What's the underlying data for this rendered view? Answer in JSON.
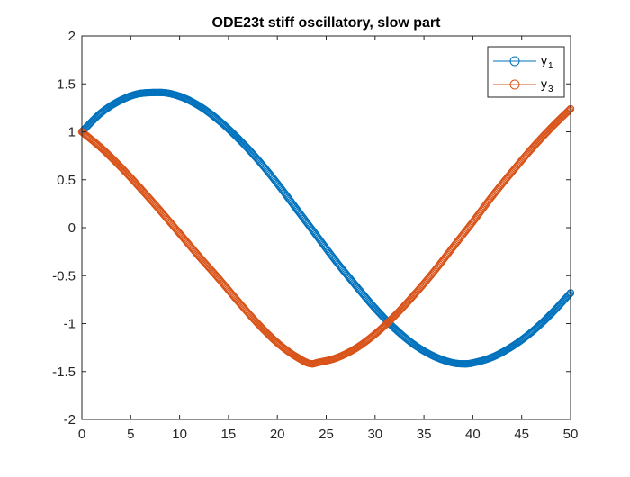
{
  "chart_data": {
    "type": "scatter",
    "title": "ODE23t stiff oscillatory, slow part",
    "xlabel": "",
    "ylabel": "",
    "xlim": [
      0,
      50
    ],
    "ylim": [
      -2,
      2
    ],
    "xticks": [
      0,
      5,
      10,
      15,
      20,
      25,
      30,
      35,
      40,
      45,
      50
    ],
    "yticks": [
      -2,
      -1.5,
      -1,
      -0.5,
      0,
      0.5,
      1,
      1.5,
      2
    ],
    "xtick_labels": [
      "0",
      "5",
      "10",
      "15",
      "20",
      "25",
      "30",
      "35",
      "40",
      "45",
      "50"
    ],
    "ytick_labels": [
      "-2",
      "-1.5",
      "-1",
      "-0.5",
      "0",
      "0.5",
      "1",
      "1.5",
      "2"
    ],
    "grid": false,
    "box": true,
    "legend_position": "top-right",
    "series": [
      {
        "name": "y1",
        "legend_base": "y",
        "legend_sub": "1",
        "color": "#0072BD",
        "marker": "circle",
        "x": [
          0,
          2,
          4,
          6,
          8,
          10,
          12,
          14,
          16,
          18,
          20,
          22,
          24,
          26,
          28,
          30,
          32,
          34,
          36,
          38,
          39.3,
          40,
          42,
          44,
          46,
          48,
          50
        ],
        "y": [
          1.0,
          1.2,
          1.33,
          1.4,
          1.41,
          1.37,
          1.27,
          1.12,
          0.93,
          0.71,
          0.46,
          0.19,
          -0.08,
          -0.35,
          -0.6,
          -0.84,
          -1.05,
          -1.22,
          -1.34,
          -1.41,
          -1.42,
          -1.41,
          -1.35,
          -1.24,
          -1.09,
          -0.9,
          -0.68
        ]
      },
      {
        "name": "y3",
        "legend_base": "y",
        "legend_sub": "3",
        "color": "#D95319",
        "marker": "circle",
        "x": [
          0,
          2,
          4,
          6,
          8,
          10,
          12,
          14,
          16,
          18,
          20,
          22,
          23.6,
          24,
          26,
          28,
          30,
          32,
          34,
          36,
          38,
          40,
          42,
          44,
          46,
          48,
          50
        ],
        "y": [
          1.0,
          0.83,
          0.63,
          0.41,
          0.18,
          -0.06,
          -0.3,
          -0.53,
          -0.77,
          -1.0,
          -1.2,
          -1.35,
          -1.42,
          -1.41,
          -1.36,
          -1.26,
          -1.11,
          -0.92,
          -0.7,
          -0.46,
          -0.2,
          0.06,
          0.33,
          0.58,
          0.82,
          1.04,
          1.24
        ]
      }
    ]
  }
}
